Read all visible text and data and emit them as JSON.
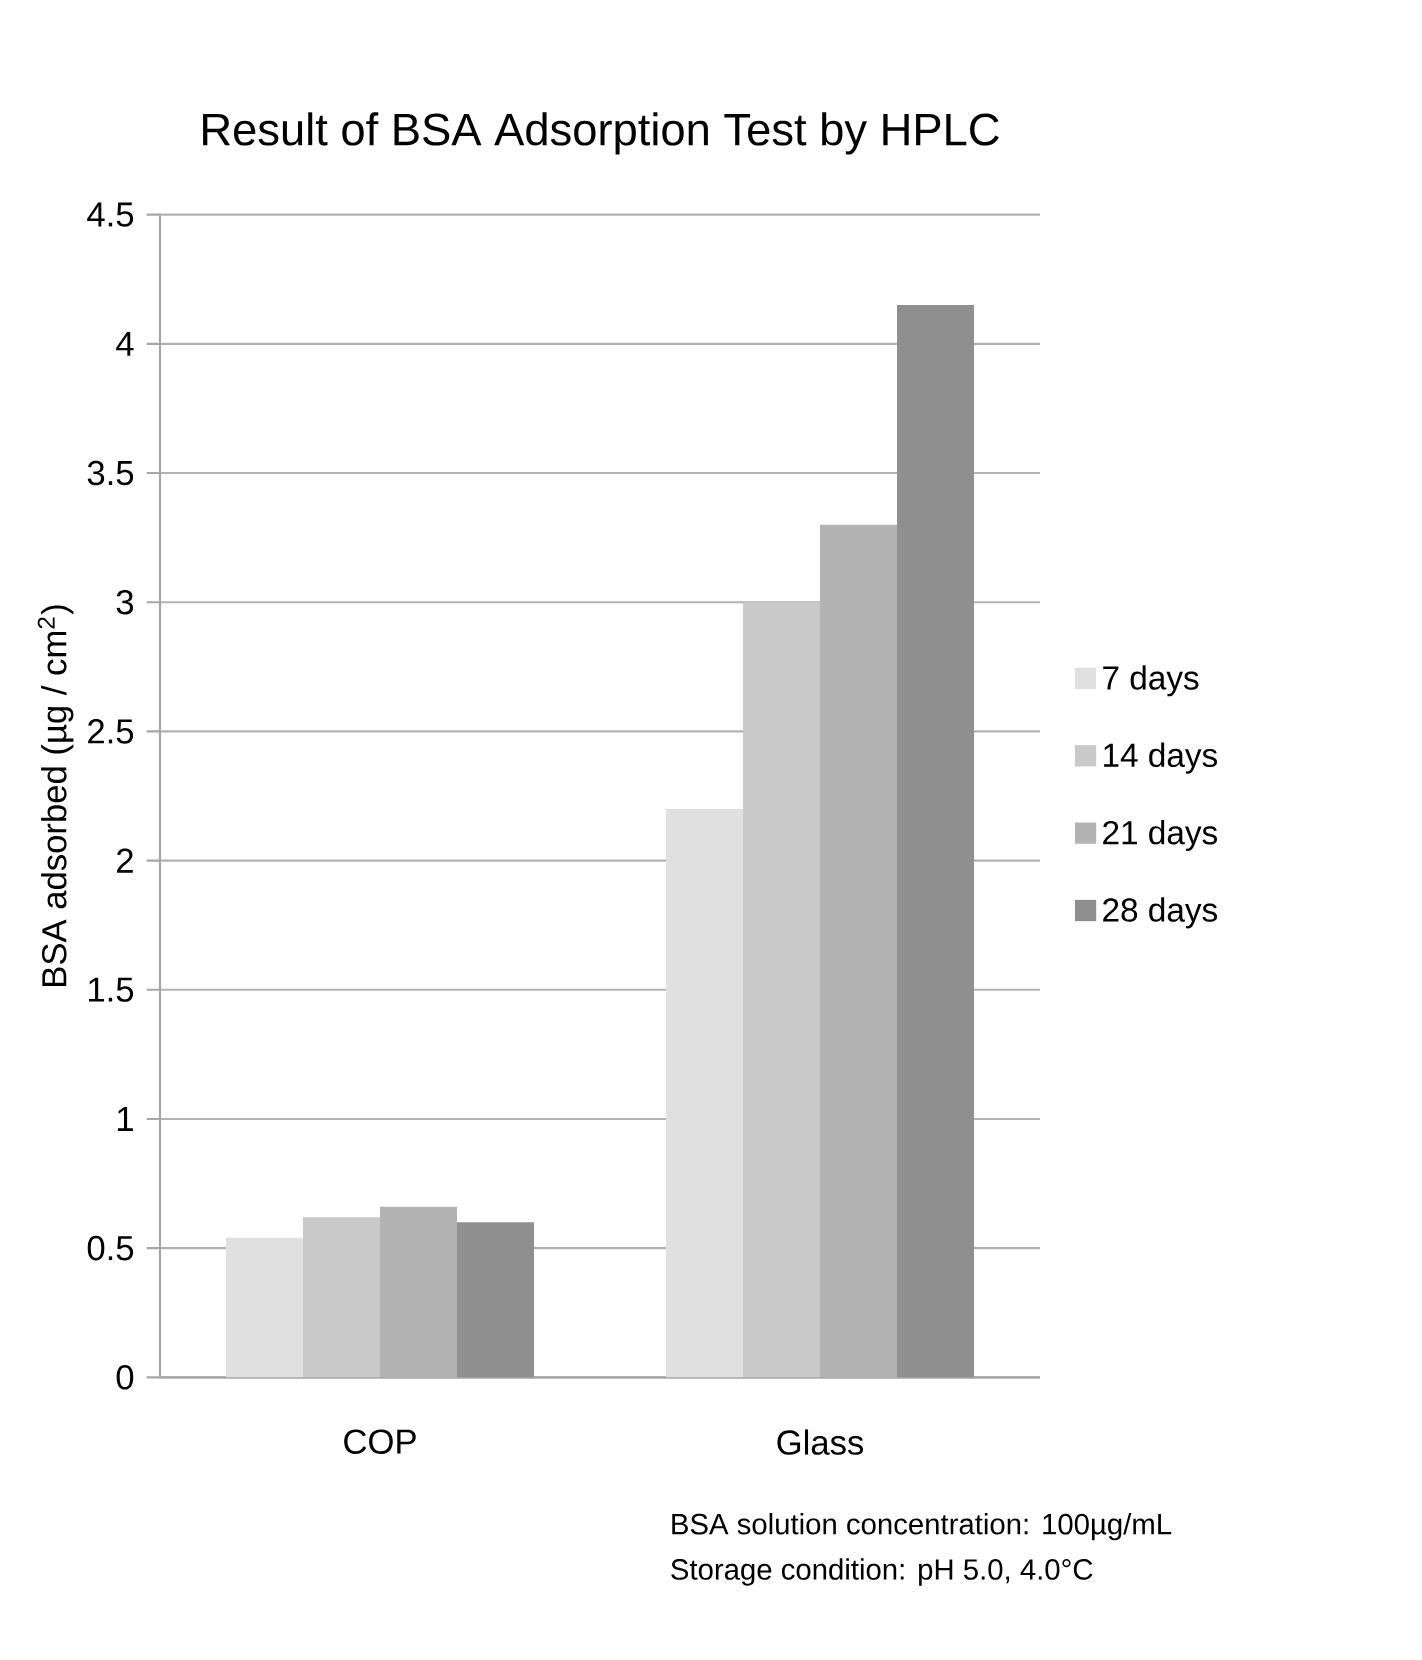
{
  "chart_data": {
    "type": "bar",
    "title": "Result of BSA Adsorption Test by HPLC",
    "ylabel": "BSA adsorbed (µg / cm$^{2}$)",
    "categories": [
      "COP",
      "Glass"
    ],
    "series": [
      {
        "name": "7 days",
        "color": "#e0e0e0",
        "values": [
          0.54,
          2.2
        ]
      },
      {
        "name": "14 days",
        "color": "#c9c9c9",
        "values": [
          0.62,
          3.0
        ]
      },
      {
        "name": "21 days",
        "color": "#b3b3b3",
        "values": [
          0.66,
          3.3
        ]
      },
      {
        "name": "28 days",
        "color": "#8f8f8f",
        "values": [
          0.6,
          4.15
        ]
      }
    ],
    "ylim": [
      0,
      4.5
    ],
    "yticks": [
      0,
      0.5,
      1,
      1.5,
      2,
      2.5,
      3,
      3.5,
      4,
      4.5
    ],
    "grid": "y",
    "legend": "right",
    "annotations": [
      "BSA solution concentration: 100µg/mL",
      "Storage condition:  pH 5.0, 4.0°C"
    ]
  }
}
